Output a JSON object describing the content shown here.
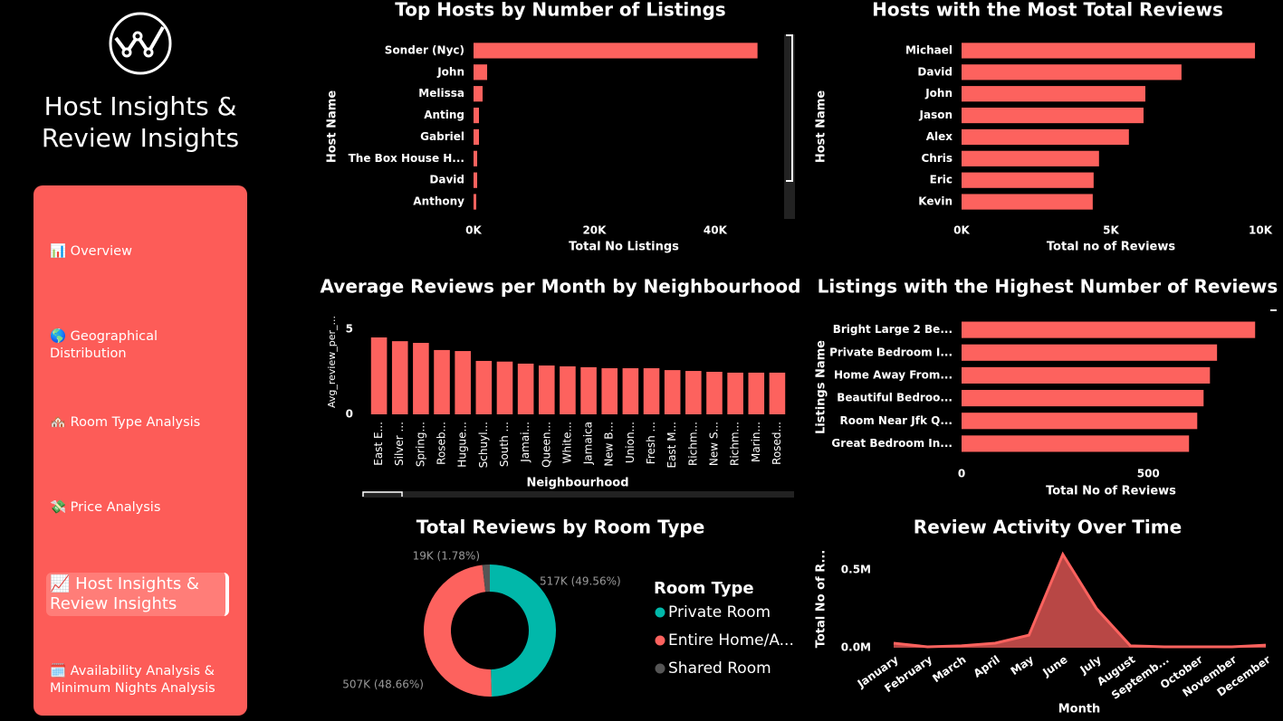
{
  "sidebar": {
    "title": "Host Insights & Review Insights",
    "nav": [
      "📊 Overview",
      "🌎 Geographical Distribution",
      "🏘️ Room Type Analysis",
      "💸 Price Analysis",
      "📈 Host Insights & Review Insights",
      "🗓️ Availability Analysis & Minimum Nights Analysis"
    ],
    "active": 4
  },
  "chart_data": [
    {
      "type": "bar",
      "orientation": "horizontal",
      "title": "Top Hosts by Number of Listings",
      "categories": [
        "Sonder (Nyc)",
        "John",
        "Melissa",
        "Anting",
        "Gabriel",
        "The Box House H...",
        "David",
        "Anthony"
      ],
      "values": [
        47000,
        2250,
        1500,
        900,
        900,
        600,
        600,
        450
      ],
      "color": "#fd625e",
      "xlim": [
        0,
        52000
      ],
      "xticks": [
        {
          "value": 0,
          "label": "0K"
        },
        {
          "value": 20000,
          "label": "20K"
        },
        {
          "value": 40000,
          "label": "40K"
        }
      ],
      "xlabel": "Total No Listings",
      "ylabel": "Host Name"
    },
    {
      "type": "bar",
      "orientation": "horizontal",
      "title": "Hosts with the Most Total Reviews",
      "categories": [
        "Michael",
        "David",
        "John",
        "Jason",
        "Alex",
        "Chris",
        "Eric",
        "Kevin"
      ],
      "values": [
        9820,
        7360,
        6150,
        6090,
        5600,
        4600,
        4420,
        4390
      ],
      "color": "#fd625e",
      "xlim": [
        0,
        10000
      ],
      "xticks": [
        {
          "value": 0,
          "label": "0K"
        },
        {
          "value": 5000,
          "label": "5K"
        },
        {
          "value": 10000,
          "label": "10K"
        }
      ],
      "xlabel": "Total no of Reviews",
      "ylabel": "Host Name"
    },
    {
      "type": "bar",
      "orientation": "vertical",
      "title": "Average Reviews per Month by Neighbourhood",
      "categories": [
        "East E...",
        "Silver ...",
        "Spring...",
        "Roseb...",
        "Hugue...",
        "Schuyl...",
        "South ...",
        "Jamai...",
        "Queen...",
        "White...",
        "Jamaica",
        "New B...",
        "Union...",
        "Fresh ...",
        "East M...",
        "Richm...",
        "New S...",
        "Richm...",
        "Marin...",
        "Rosed..."
      ],
      "values": [
        4.52,
        4.3,
        4.2,
        3.78,
        3.72,
        3.14,
        3.1,
        2.98,
        2.87,
        2.82,
        2.77,
        2.71,
        2.71,
        2.71,
        2.6,
        2.55,
        2.5,
        2.45,
        2.45,
        2.45
      ],
      "color": "#fd625e",
      "ylim": [
        0,
        5.6
      ],
      "yticks": [
        0,
        5
      ],
      "xlabel": "Neighbourhood",
      "ylabel": "Avg_review_per_..."
    },
    {
      "type": "bar",
      "orientation": "horizontal",
      "title": "Listings with the Highest Number of Reviews",
      "categories": [
        "Bright Large 2 Be...",
        "Private Bedroom I...",
        "Home Away From...",
        "Beautiful Bedroo...",
        "Room Near Jfk Q...",
        "Great Bedroom In..."
      ],
      "values": [
        786,
        684,
        665,
        648,
        631,
        609
      ],
      "color": "#fd625e",
      "xlim": [
        0,
        800
      ],
      "xticks": [
        0,
        500
      ],
      "xlabel": "Total No of Reviews",
      "ylabel": "Listings Name"
    },
    {
      "type": "donut",
      "title": "Total Reviews by Room Type",
      "legend_title": "Room Type",
      "categories": [
        "Private Room",
        "Entire Home/A...",
        "Shared Room"
      ],
      "values": [
        517000,
        507000,
        19000
      ],
      "value_labels": [
        "517K (49.56%)",
        "507K (48.66%)",
        "19K (1.78%)"
      ],
      "colors": [
        "#01b8aa",
        "#fd625e",
        "#555555"
      ]
    },
    {
      "type": "area",
      "title": "Review Activity Over Time",
      "categories": [
        "January",
        "February",
        "March",
        "April",
        "May",
        "June",
        "July",
        "August",
        "Septemb...",
        "October",
        "November",
        "December"
      ],
      "values": [
        29000,
        6000,
        12000,
        29000,
        81000,
        599000,
        250000,
        12000,
        6000,
        6000,
        6000,
        17000
      ],
      "color": "#fd625e",
      "fill": "#b84745",
      "ylim": [
        0,
        650000
      ],
      "yticks": [
        {
          "value": 0,
          "label": "0.0M"
        },
        {
          "value": 500000,
          "label": "0.5M"
        }
      ],
      "xlabel": "Month",
      "ylabel": "Total No of R..."
    }
  ]
}
